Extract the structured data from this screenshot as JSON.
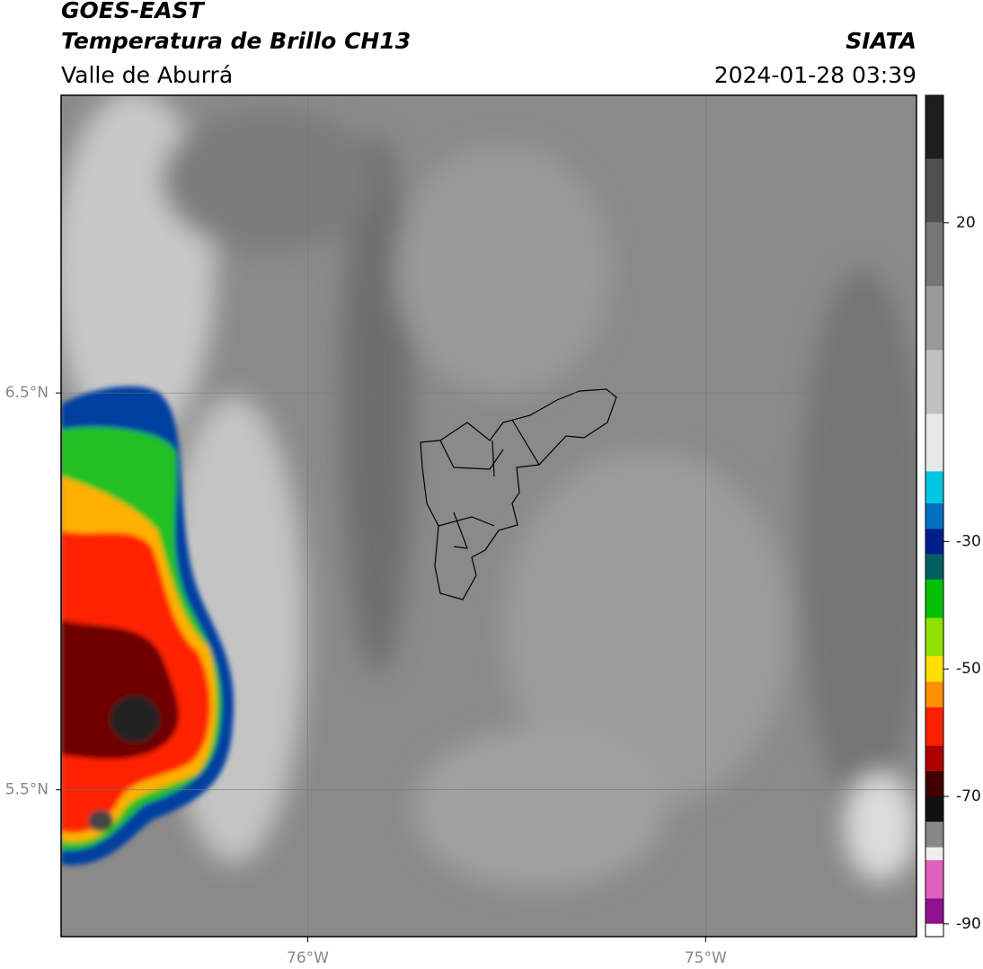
{
  "header": {
    "title": "GOES-EAST",
    "subtitle": "Temperatura de Brillo CH13",
    "region": "Valle de Aburrá",
    "source": "SIATA",
    "datetime": "2024-01-28 03:39"
  },
  "map": {
    "xlim": [
      -76.62,
      -74.47
    ],
    "ylim": [
      5.13,
      7.25
    ],
    "xticks": [
      {
        "value": -76,
        "label": "76°W"
      },
      {
        "value": -75,
        "label": "75°W"
      }
    ],
    "yticks": [
      {
        "value": 6.5,
        "label": "6.5°N"
      },
      {
        "value": 5.5,
        "label": "5.5°N"
      }
    ],
    "grid": true
  },
  "colorbar": {
    "lim": [
      40,
      -92
    ],
    "ticks": [
      20,
      -30,
      -50,
      -70,
      -90
    ],
    "bands": [
      {
        "from": 40,
        "to": 30,
        "color": "#1e1e1e"
      },
      {
        "from": 30,
        "to": 20,
        "color": "#505050"
      },
      {
        "from": 20,
        "to": 10,
        "color": "#767676"
      },
      {
        "from": 10,
        "to": 0,
        "color": "#9a9a9a"
      },
      {
        "from": 0,
        "to": -10,
        "color": "#c0c0c0"
      },
      {
        "from": -10,
        "to": -19,
        "color": "#e8e8e8"
      },
      {
        "from": -19,
        "to": -24,
        "color": "#00c8e0"
      },
      {
        "from": -24,
        "to": -28,
        "color": "#0070c0"
      },
      {
        "from": -28,
        "to": -32,
        "color": "#001f8c"
      },
      {
        "from": -32,
        "to": -36,
        "color": "#006060"
      },
      {
        "from": -36,
        "to": -42,
        "color": "#00c000"
      },
      {
        "from": -42,
        "to": -48,
        "color": "#90e000"
      },
      {
        "from": -48,
        "to": -52,
        "color": "#ffe000"
      },
      {
        "from": -52,
        "to": -56,
        "color": "#ff9000"
      },
      {
        "from": -56,
        "to": -62,
        "color": "#ff2000"
      },
      {
        "from": -62,
        "to": -66,
        "color": "#b00000"
      },
      {
        "from": -66,
        "to": -70,
        "color": "#400000"
      },
      {
        "from": -70,
        "to": -74,
        "color": "#111111"
      },
      {
        "from": -74,
        "to": -78,
        "color": "#888888"
      },
      {
        "from": -78,
        "to": -80,
        "color": "#eeeeee"
      },
      {
        "from": -80,
        "to": -86,
        "color": "#e060c0"
      },
      {
        "from": -86,
        "to": -90,
        "color": "#901090"
      },
      {
        "from": -90,
        "to": -92,
        "color": "#ffffff"
      }
    ]
  }
}
